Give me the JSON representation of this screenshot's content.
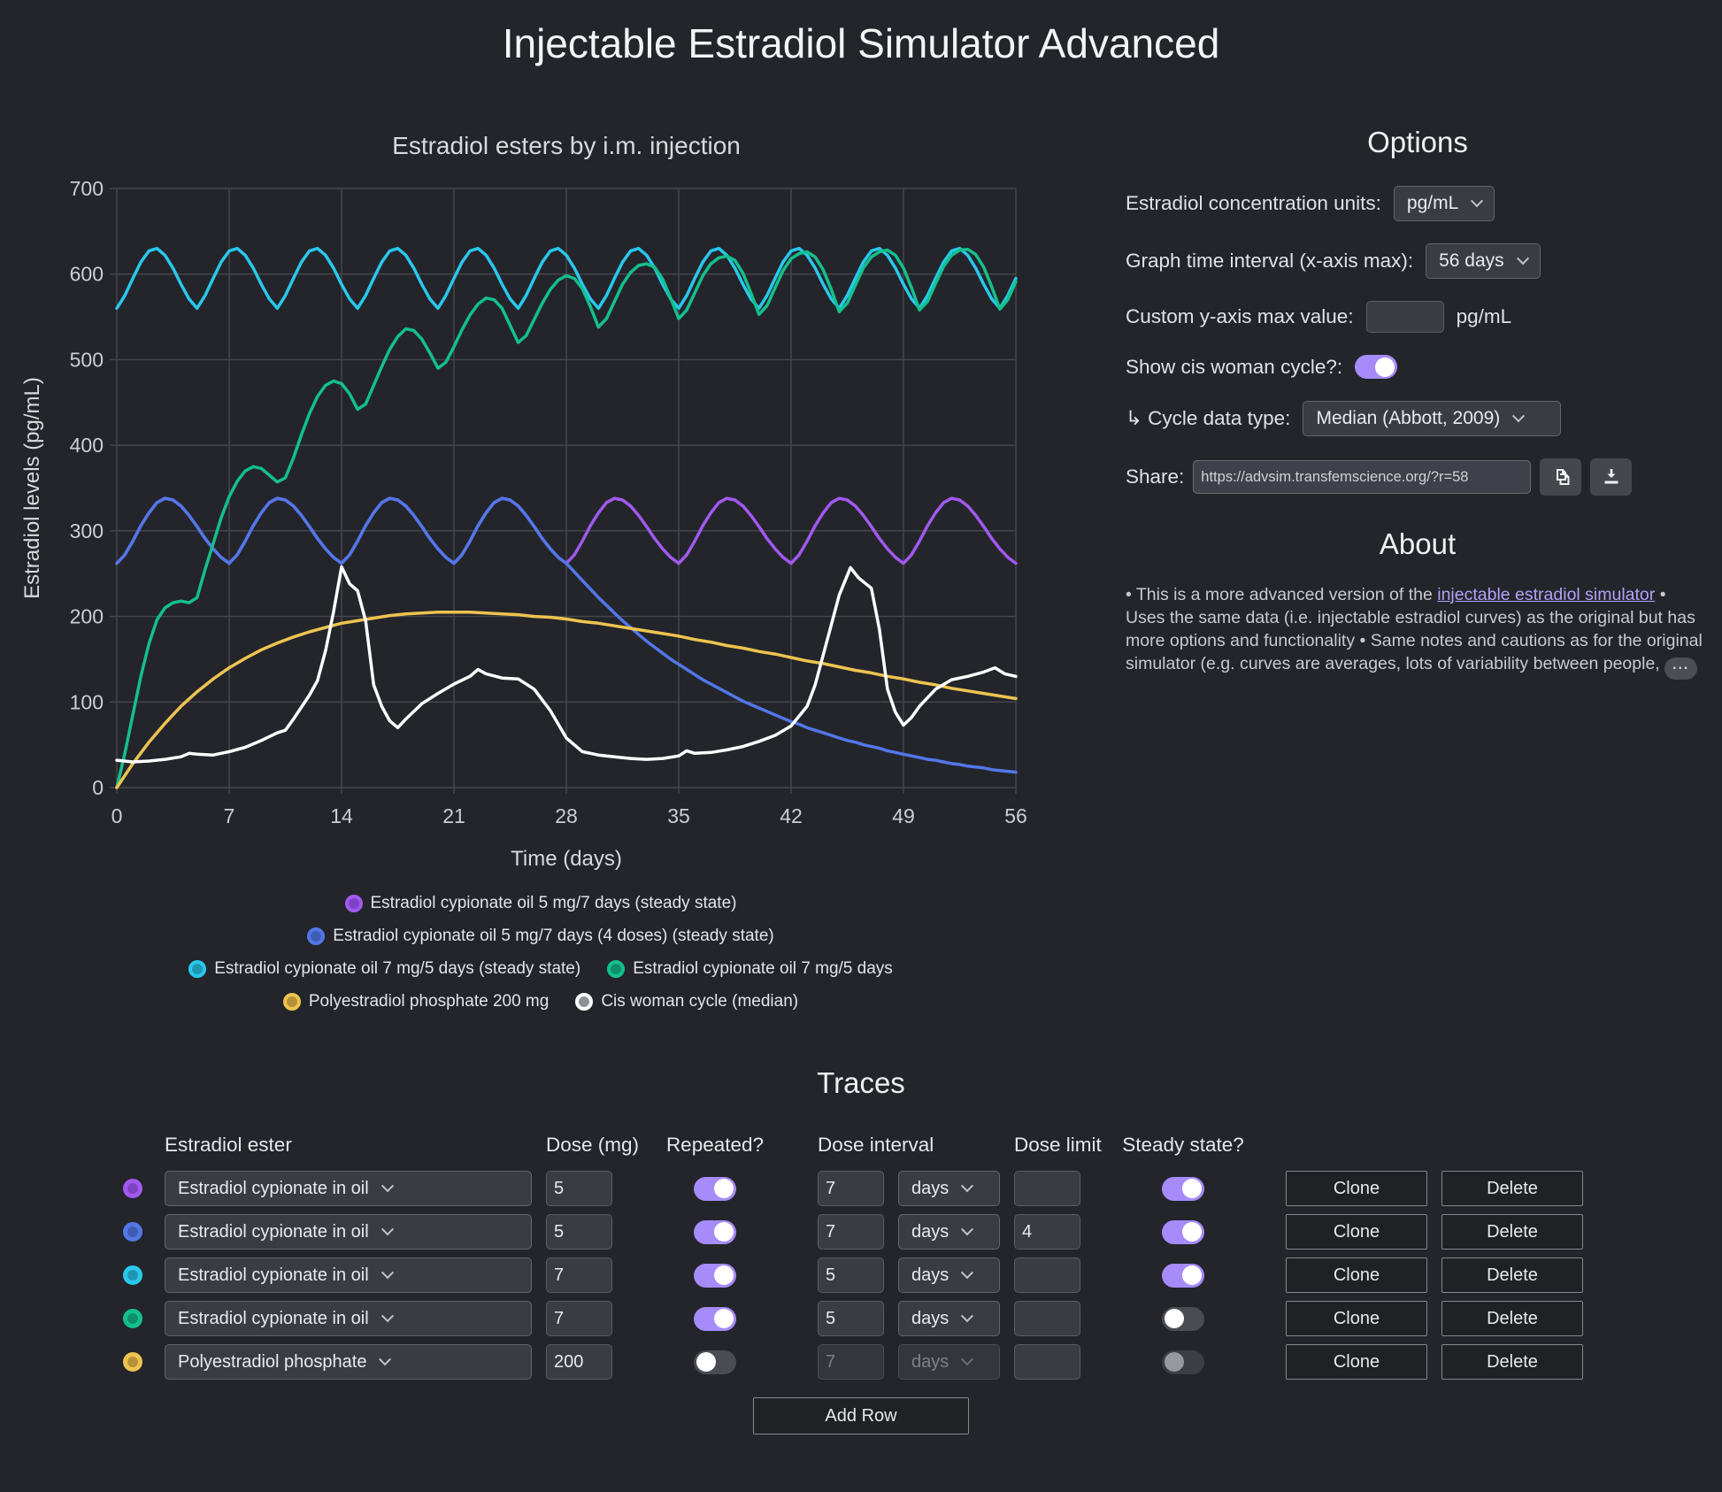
{
  "page": {
    "title": "Injectable Estradiol Simulator Advanced"
  },
  "options": {
    "heading": "Options",
    "units_label": "Estradiol concentration units:",
    "units_value": "pg/mL",
    "interval_label": "Graph time interval (x-axis max):",
    "interval_value": "56 days",
    "custom_y_label": "Custom y-axis max value:",
    "custom_y_value": "",
    "custom_y_suffix": "pg/mL",
    "show_cycle_label": "Show cis woman cycle?:",
    "show_cycle_on": true,
    "cycle_type_label": "↳ Cycle data type:",
    "cycle_type_value": "Median (Abbott, 2009)",
    "share_label": "Share:",
    "share_url": "https://advsim.transfemscience.org/?r=58"
  },
  "about": {
    "heading": "About",
    "text_before": "• This is a more advanced version of the ",
    "link_text": "injectable estradiol simulator",
    "text_after": " • Uses the same data (i.e. injectable estradiol curves) as the original but has more options and functionality • Same notes and cautions as for the original simulator (e.g. curves are averages, lots of variability between people, ",
    "ellipsis": "···"
  },
  "traces": {
    "heading": "Traces",
    "headers": [
      "Estradiol ester",
      "Dose (mg)",
      "Repeated?",
      "Dose interval",
      "Dose limit",
      "Steady state?"
    ],
    "clone_label": "Clone",
    "delete_label": "Delete",
    "add_row_label": "Add Row",
    "rows": [
      {
        "color": "#a259ef",
        "inner": "#7e42c4",
        "ester": "Estradiol cypionate in oil",
        "dose": "5",
        "repeated": true,
        "interval": "7",
        "unit": "days",
        "limit": "",
        "steady": true,
        "steady_disabled": false
      },
      {
        "color": "#5277e8",
        "inner": "#3f5cb4",
        "ester": "Estradiol cypionate in oil",
        "dose": "5",
        "repeated": true,
        "interval": "7",
        "unit": "days",
        "limit": "4",
        "steady": true,
        "steady_disabled": false
      },
      {
        "color": "#29c8ec",
        "inner": "#1e96b4",
        "ester": "Estradiol cypionate in oil",
        "dose": "7",
        "repeated": true,
        "interval": "5",
        "unit": "days",
        "limit": "",
        "steady": true,
        "steady_disabled": false
      },
      {
        "color": "#13c08c",
        "inner": "#0e8f69",
        "ester": "Estradiol cypionate in oil",
        "dose": "7",
        "repeated": true,
        "interval": "5",
        "unit": "days",
        "limit": "",
        "steady": false,
        "steady_disabled": false
      },
      {
        "color": "#eec450",
        "inner": "#b5913a",
        "ester": "Polyestradiol phosphate",
        "dose": "200",
        "repeated": false,
        "interval": "7",
        "unit": "days",
        "limit": "",
        "steady": false,
        "steady_disabled": true
      }
    ]
  },
  "chart_data": {
    "type": "line",
    "title": "Estradiol esters by i.m. injection",
    "xlabel": "Time (days)",
    "ylabel": "Estradiol levels (pg/mL)",
    "xlim": [
      0,
      56
    ],
    "ylim": [
      0,
      700
    ],
    "xticks": [
      0,
      7,
      14,
      21,
      28,
      35,
      42,
      49,
      56
    ],
    "yticks": [
      0,
      100,
      200,
      300,
      400,
      500,
      600,
      700
    ],
    "grid": true,
    "legend_position": "bottom",
    "legend_rows": [
      [
        0
      ],
      [
        1
      ],
      [
        2,
        3
      ],
      [
        4,
        5
      ]
    ],
    "series": [
      {
        "name": "Estradiol cypionate oil 5 mg/7 days (steady state)",
        "color": "#a259ef",
        "inner": "#7e42c4",
        "x0": 0,
        "dx": 0.5,
        "values": [
          262,
          272,
          288,
          306,
          321,
          333,
          338,
          336,
          329,
          318,
          305,
          291,
          279,
          269,
          262,
          272,
          288,
          306,
          321,
          333,
          338,
          336,
          329,
          318,
          305,
          291,
          279,
          269,
          262,
          272,
          288,
          306,
          321,
          333,
          338,
          336,
          329,
          318,
          305,
          291,
          279,
          269,
          262,
          272,
          288,
          306,
          321,
          333,
          338,
          336,
          329,
          318,
          305,
          291,
          279,
          269,
          262,
          272,
          288,
          306,
          321,
          333,
          338,
          336,
          329,
          318,
          305,
          291,
          279,
          269,
          262,
          272,
          288,
          306,
          321,
          333,
          338,
          336,
          329,
          318,
          305,
          291,
          279,
          269,
          262,
          272,
          288,
          306,
          321,
          333,
          338,
          336,
          329,
          318,
          305,
          291,
          279,
          269,
          262,
          272,
          288,
          306,
          321,
          333,
          338,
          336,
          329,
          318,
          305,
          291,
          279,
          269,
          262
        ]
      },
      {
        "name": "Estradiol cypionate oil 5 mg/7 days (4 doses) (steady state)",
        "color": "#5277e8",
        "inner": "#3f5cb4",
        "x0": 0,
        "dx": 0.5,
        "values": [
          262,
          272,
          288,
          306,
          321,
          333,
          338,
          336,
          329,
          318,
          305,
          291,
          279,
          269,
          262,
          272,
          288,
          306,
          321,
          333,
          338,
          336,
          329,
          318,
          305,
          291,
          279,
          269,
          262,
          272,
          288,
          306,
          321,
          333,
          338,
          336,
          329,
          318,
          305,
          291,
          279,
          269,
          262,
          272,
          288,
          306,
          321,
          333,
          338,
          336,
          329,
          318,
          305,
          291,
          279,
          269,
          262,
          252,
          242,
          232,
          222,
          213,
          204,
          195,
          187,
          179,
          171,
          164,
          157,
          150,
          144,
          138,
          132,
          126,
          121,
          116,
          111,
          106,
          101,
          97,
          93,
          89,
          85,
          81,
          77,
          74,
          70,
          67,
          64,
          61,
          58,
          55,
          53,
          50,
          48,
          46,
          43,
          41,
          39,
          37,
          35,
          33,
          32,
          30,
          28,
          27,
          25,
          24,
          23,
          21,
          20,
          19,
          18
        ]
      },
      {
        "name": "Estradiol cypionate oil 7 mg/5 days (steady state)",
        "color": "#29c8ec",
        "inner": "#1e96b4",
        "x0": 0,
        "dx": 0.5,
        "values": [
          560,
          575,
          595,
          614,
          627,
          630,
          622,
          607,
          588,
          571,
          560,
          575,
          595,
          614,
          627,
          630,
          622,
          607,
          588,
          571,
          560,
          575,
          595,
          614,
          627,
          630,
          622,
          607,
          588,
          571,
          560,
          575,
          595,
          614,
          627,
          630,
          622,
          607,
          588,
          571,
          560,
          575,
          595,
          614,
          627,
          630,
          622,
          607,
          588,
          571,
          560,
          575,
          595,
          614,
          627,
          630,
          622,
          607,
          588,
          571,
          560,
          575,
          595,
          614,
          627,
          630,
          622,
          607,
          588,
          571,
          560,
          575,
          595,
          614,
          627,
          630,
          622,
          607,
          588,
          571,
          560,
          575,
          595,
          614,
          627,
          630,
          622,
          607,
          588,
          571,
          560,
          575,
          595,
          614,
          627,
          630,
          622,
          607,
          588,
          571,
          560,
          575,
          595,
          614,
          627,
          630,
          622,
          607,
          588,
          571,
          560,
          575,
          595
        ]
      },
      {
        "name": "Estradiol cypionate oil 7 mg/5 days",
        "color": "#13c08c",
        "inner": "#0e8f69",
        "x0": 0,
        "dx": 0.5,
        "values": [
          0,
          40,
          85,
          130,
          168,
          196,
          210,
          216,
          218,
          216,
          222,
          255,
          285,
          315,
          340,
          358,
          370,
          375,
          373,
          365,
          357,
          362,
          385,
          412,
          437,
          457,
          470,
          475,
          472,
          460,
          442,
          448,
          470,
          492,
          512,
          527,
          536,
          534,
          524,
          508,
          490,
          497,
          515,
          535,
          552,
          565,
          572,
          570,
          560,
          540,
          520,
          528,
          547,
          566,
          582,
          593,
          598,
          595,
          583,
          562,
          538,
          548,
          568,
          588,
          602,
          610,
          612,
          608,
          594,
          572,
          548,
          558,
          578,
          598,
          612,
          619,
          621,
          616,
          601,
          578,
          553,
          563,
          584,
          604,
          618,
          624,
          626,
          620,
          605,
          582,
          556,
          566,
          587,
          607,
          620,
          626,
          628,
          622,
          607,
          584,
          558,
          568,
          589,
          609,
          622,
          628,
          629,
          623,
          608,
          585,
          559,
          570,
          591
        ]
      },
      {
        "name": "Polyestradiol phosphate 200 mg",
        "color": "#eec450",
        "inner": "#b5913a",
        "x0": 0,
        "dx": 1,
        "values": [
          0,
          28,
          53,
          75,
          95,
          112,
          127,
          140,
          151,
          161,
          169,
          176,
          182,
          187,
          192,
          195,
          198,
          201,
          203,
          204,
          205,
          205,
          205,
          204,
          203,
          202,
          200,
          199,
          197,
          194,
          192,
          189,
          186,
          183,
          180,
          177,
          173,
          170,
          166,
          163,
          159,
          156,
          152,
          148,
          145,
          141,
          137,
          134,
          130,
          127,
          123,
          120,
          116,
          113,
          110,
          107,
          104
        ]
      },
      {
        "name": "Cis woman cycle (median)",
        "color": "#ffffff",
        "inner": "#8f9095",
        "points": [
          [
            0,
            32
          ],
          [
            1,
            30
          ],
          [
            2,
            31
          ],
          [
            3,
            33
          ],
          [
            4,
            36
          ],
          [
            4.5,
            40
          ],
          [
            5,
            39
          ],
          [
            6,
            38
          ],
          [
            7,
            42
          ],
          [
            8,
            47
          ],
          [
            9,
            55
          ],
          [
            10,
            64
          ],
          [
            10.5,
            67
          ],
          [
            11,
            80
          ],
          [
            12,
            108
          ],
          [
            12.5,
            125
          ],
          [
            13,
            160
          ],
          [
            13.5,
            205
          ],
          [
            14,
            258
          ],
          [
            14.5,
            238
          ],
          [
            15,
            230
          ],
          [
            15.5,
            195
          ],
          [
            16,
            120
          ],
          [
            16.5,
            95
          ],
          [
            17,
            78
          ],
          [
            17.5,
            70
          ],
          [
            18,
            80
          ],
          [
            19,
            98
          ],
          [
            20,
            110
          ],
          [
            21,
            121
          ],
          [
            22,
            130
          ],
          [
            22.5,
            138
          ],
          [
            23,
            133
          ],
          [
            24,
            128
          ],
          [
            25,
            127
          ],
          [
            26,
            115
          ],
          [
            27,
            90
          ],
          [
            28,
            58
          ],
          [
            29,
            42
          ],
          [
            30,
            38
          ],
          [
            31,
            36
          ],
          [
            32,
            34
          ],
          [
            33,
            33
          ],
          [
            34,
            34
          ],
          [
            35,
            37
          ],
          [
            35.5,
            43
          ],
          [
            36,
            40
          ],
          [
            37,
            41
          ],
          [
            38,
            44
          ],
          [
            39,
            48
          ],
          [
            40,
            54
          ],
          [
            41,
            61
          ],
          [
            42,
            72
          ],
          [
            43,
            95
          ],
          [
            43.5,
            120
          ],
          [
            44,
            155
          ],
          [
            44.5,
            190
          ],
          [
            45,
            225
          ],
          [
            45.7,
            257
          ],
          [
            46.2,
            245
          ],
          [
            47,
            233
          ],
          [
            47.5,
            185
          ],
          [
            48,
            115
          ],
          [
            48.5,
            88
          ],
          [
            49,
            73
          ],
          [
            49.5,
            82
          ],
          [
            50,
            95
          ],
          [
            51,
            115
          ],
          [
            52,
            126
          ],
          [
            53,
            130
          ],
          [
            54,
            135
          ],
          [
            54.7,
            140
          ],
          [
            55.3,
            133
          ],
          [
            56,
            130
          ]
        ]
      }
    ]
  }
}
